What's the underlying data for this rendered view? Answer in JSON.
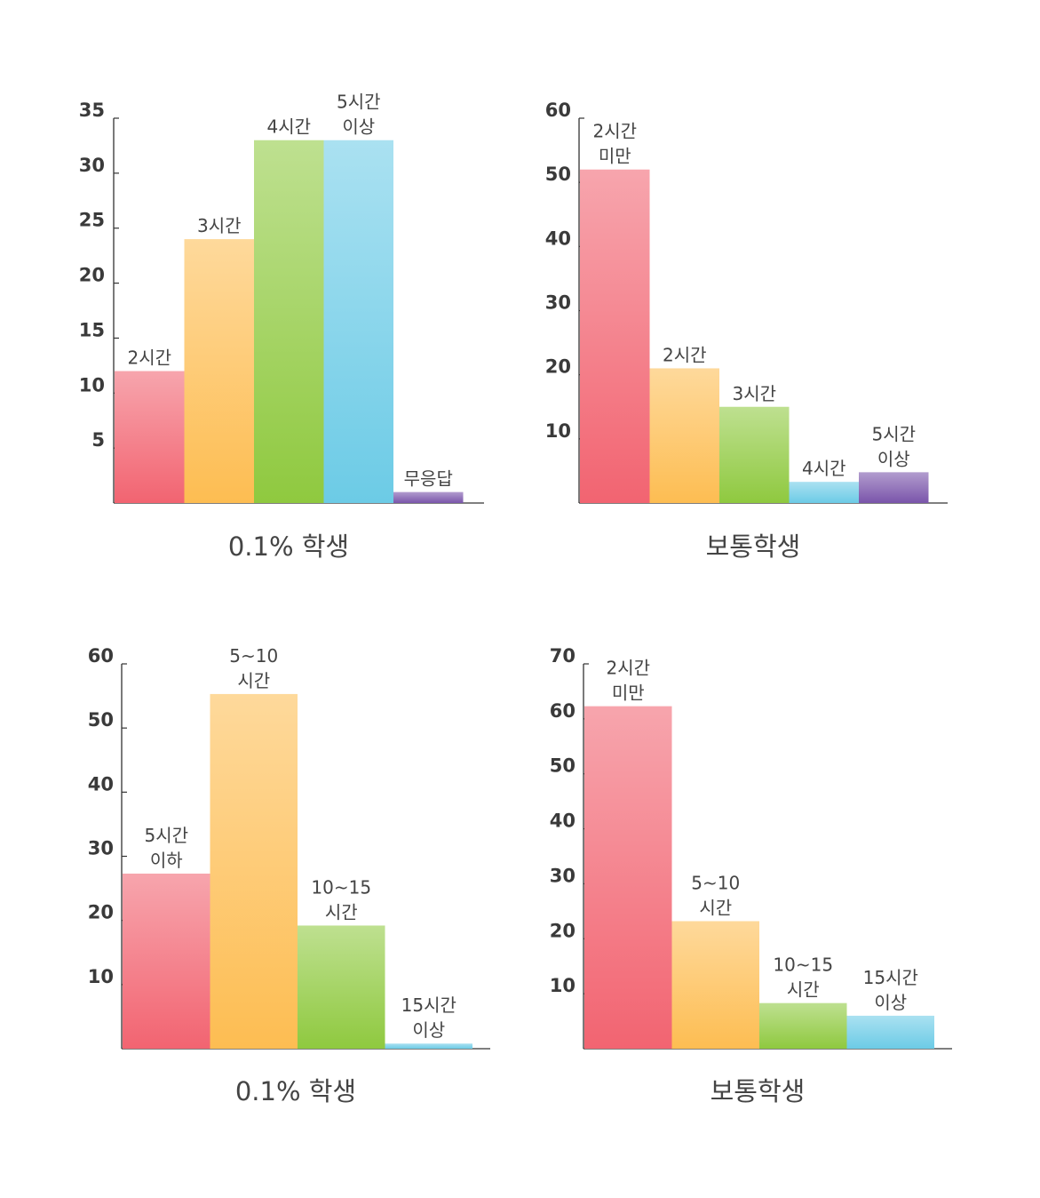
{
  "chart_data": [
    {
      "type": "bar",
      "title": "0.1% 학생",
      "yticks": [
        "5",
        "10",
        "15",
        "20",
        "25",
        "30",
        "35"
      ],
      "ylim": [
        0,
        35
      ],
      "grid": false,
      "categories": [
        "2시간",
        "3시간",
        "4시간",
        "5시간\n이상",
        "무응답"
      ],
      "values": [
        12,
        24,
        33,
        33,
        1
      ],
      "colors": [
        "#f26471",
        "#fdbd52",
        "#8fc93f",
        "#6ccbe6",
        "#7a55aa"
      ]
    },
    {
      "type": "bar",
      "title": "보통학생",
      "yticks": [
        "10",
        "20",
        "30",
        "40",
        "50",
        "60"
      ],
      "ylim": [
        0,
        60
      ],
      "grid": false,
      "categories": [
        "2시간\n미만",
        "2시간",
        "3시간",
        "4시간",
        "5시간\n이상"
      ],
      "values": [
        52,
        21,
        15,
        3.3,
        4.8
      ],
      "colors": [
        "#f26471",
        "#fdbd52",
        "#8fc93f",
        "#6ccbe6",
        "#7a55aa"
      ]
    },
    {
      "type": "bar",
      "title": "0.1% 학생",
      "yticks": [
        "10",
        "20",
        "30",
        "40",
        "50",
        "60"
      ],
      "ylim": [
        0,
        60
      ],
      "grid": false,
      "categories": [
        "5시간\n이하",
        "5~10\n시간",
        "10~15\n시간",
        "15시간\n이상"
      ],
      "values": [
        27.3,
        55.3,
        19.2,
        0.8
      ],
      "colors": [
        "#f26471",
        "#fdbd52",
        "#8fc93f",
        "#6ccbe6"
      ]
    },
    {
      "type": "bar",
      "title": "보통학생",
      "yticks": [
        "10",
        "20",
        "30",
        "40",
        "50",
        "60",
        "70"
      ],
      "ylim": [
        0,
        70
      ],
      "grid": false,
      "categories": [
        "2시간\n미만",
        "5~10\n시간",
        "10~15\n시간",
        "15시간\n이상"
      ],
      "values": [
        62.3,
        23.2,
        8.3,
        6
      ]
    }
  ]
}
